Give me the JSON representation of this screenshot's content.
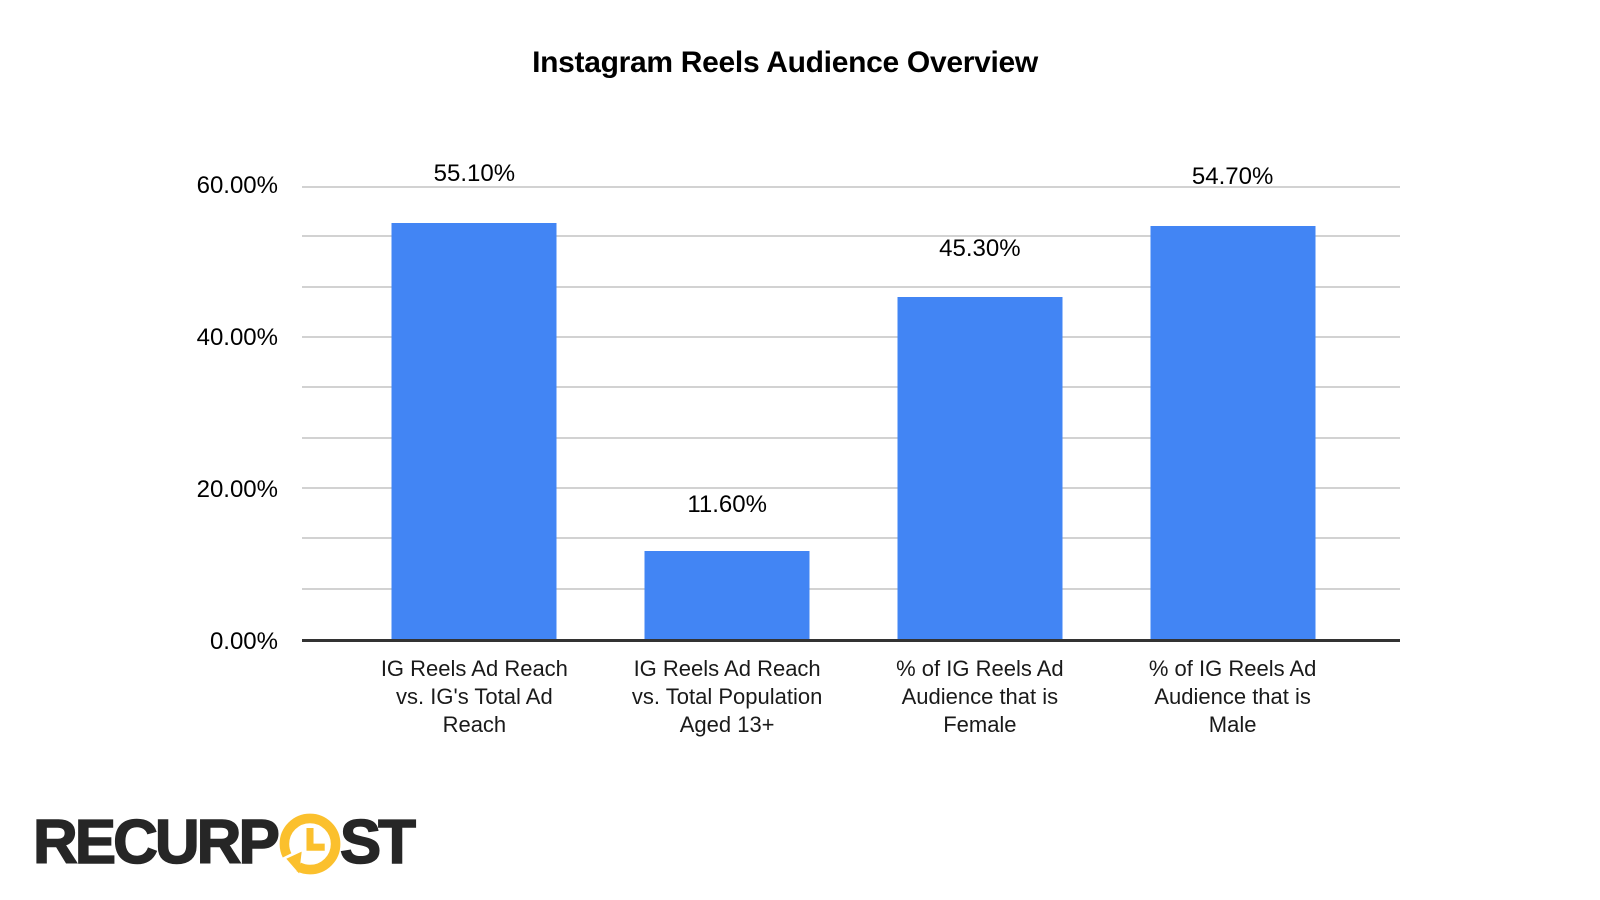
{
  "chart_data": {
    "type": "bar",
    "title": "Instagram Reels Audience Overview",
    "categories": [
      "IG Reels Ad Reach\nvs. IG's Total Ad\nReach",
      "IG Reels Ad Reach\nvs. Total Population\nAged 13+",
      "% of IG Reels Ad\nAudience that is\nFemale",
      "% of IG Reels Ad\nAudience that is\nMale"
    ],
    "values": [
      55.1,
      11.6,
      45.3,
      54.7
    ],
    "value_labels": [
      "55.10%",
      "11.60%",
      "45.30%",
      "54.70%"
    ],
    "ylim": [
      0,
      60
    ],
    "ytick_labels_top_to_bottom": [
      "60.00%",
      "40.00%",
      "20.00%",
      "0.00%"
    ],
    "gridlines": "major every 20%, two minor lines between majors",
    "legend": "none",
    "bar_color": "#4285F4",
    "xlabel": "",
    "ylabel": ""
  },
  "colors": {
    "bar": "#4285F4",
    "gridline": "#d2d2d2",
    "axis_line": "#333333",
    "text": "#000000",
    "logo_text": "#262626",
    "logo_clock": "#FBC02D"
  },
  "logo": {
    "text_before_clock": "RECURP",
    "text_after_clock": "ST",
    "icon": "clock-history-icon"
  }
}
